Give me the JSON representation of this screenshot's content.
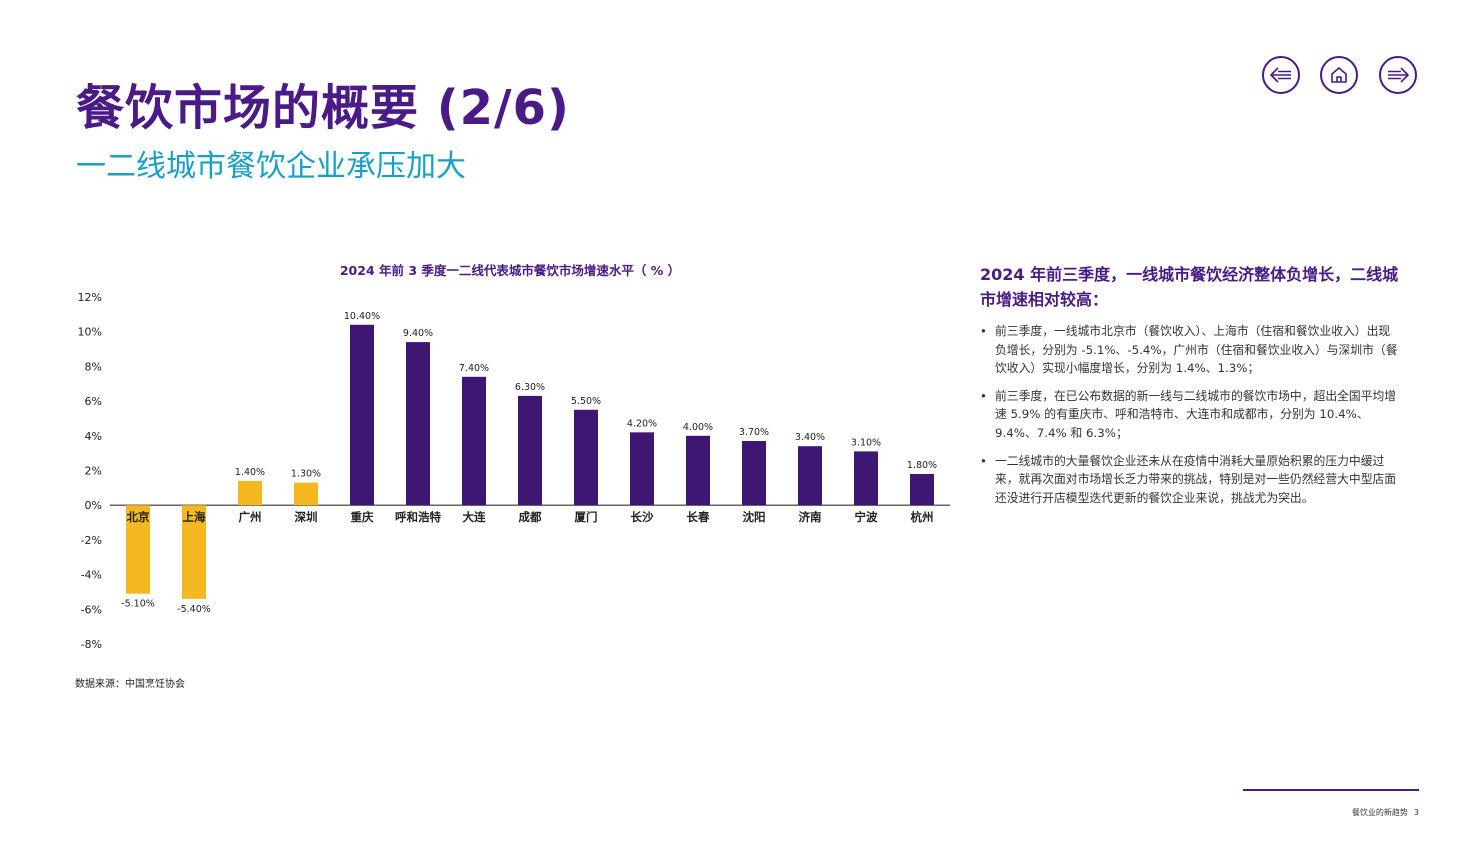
{
  "header": {
    "title": "餐饮市场的概要 (2/6)",
    "subtitle": "一二线城市餐饮企业承压加大"
  },
  "nav": {
    "back_icon": "arrow-left-icon",
    "home_icon": "home-icon",
    "forward_icon": "arrow-right-icon"
  },
  "colors": {
    "brand_purple": "#4a1a86",
    "accent_teal": "#1aa0c8",
    "bar_tier1": "#f5b820",
    "bar_tier2": "#3e1674"
  },
  "chart_data": {
    "type": "bar",
    "title": "2024 年前 3 季度一二线代表城市餐饮市场增速水平（ % ）",
    "categories": [
      "北京",
      "上海",
      "广州",
      "深圳",
      "重庆",
      "呼和浩特",
      "大连",
      "成都",
      "厦门",
      "长沙",
      "长春",
      "沈阳",
      "济南",
      "宁波",
      "杭州"
    ],
    "values": [
      -5.1,
      -5.4,
      1.4,
      1.3,
      10.4,
      9.4,
      7.4,
      6.3,
      5.5,
      4.2,
      4.0,
      3.7,
      3.4,
      3.1,
      1.8
    ],
    "value_labels": [
      "-5.10%",
      "-5.40%",
      "1.40%",
      "1.30%",
      "10.40%",
      "9.40%",
      "7.40%",
      "6.30%",
      "5.50%",
      "4.20%",
      "4.00%",
      "3.70%",
      "3.40%",
      "3.10%",
      "1.80%"
    ],
    "bar_group": [
      "tier1",
      "tier1",
      "tier1",
      "tier1",
      "tier2",
      "tier2",
      "tier2",
      "tier2",
      "tier2",
      "tier2",
      "tier2",
      "tier2",
      "tier2",
      "tier2",
      "tier2"
    ],
    "ylim": [
      -8,
      12
    ],
    "yticks": [
      12,
      10,
      8,
      6,
      4,
      2,
      0,
      -2,
      -4,
      -6,
      -8
    ],
    "ytick_labels": [
      "12%",
      "10%",
      "8%",
      "6%",
      "4%",
      "2%",
      "0%",
      "-2%",
      "-4%",
      "-6%",
      "-8%"
    ],
    "grid": false,
    "legend": "none"
  },
  "source": "数据来源：中国烹饪协会",
  "side": {
    "heading": "2024 年前三季度，一线城市餐饮经济整体负增长，二线城市增速相对较高：",
    "bullet_char": "•",
    "bullets": [
      "前三季度，一线城市北京市（餐饮收入）、上海市（住宿和餐饮业收入）出现负增长，分别为 -5.1%、-5.4%，广州市（住宿和餐饮业收入）与深圳市（餐饮收入）实现小幅度增长，分别为 1.4%、1.3%；",
      "前三季度，在已公布数据的新一线与二线城市的餐饮市场中，超出全国平均增速 5.9% 的有重庆市、呼和浩特市、大连市和成都市，分别为 10.4%、9.4%、7.4% 和 6.3%；",
      "一二线城市的大量餐饮企业还未从在疫情中消耗大量原始积累的压力中缓过来，就再次面对市场增长乏力带来的挑战，特别是对一些仍然经营大中型店面还没进行开店模型迭代更新的餐饮企业来说，挑战尤为突出。"
    ]
  },
  "footer": {
    "text": "餐饮业的新趋势",
    "page": "3"
  }
}
